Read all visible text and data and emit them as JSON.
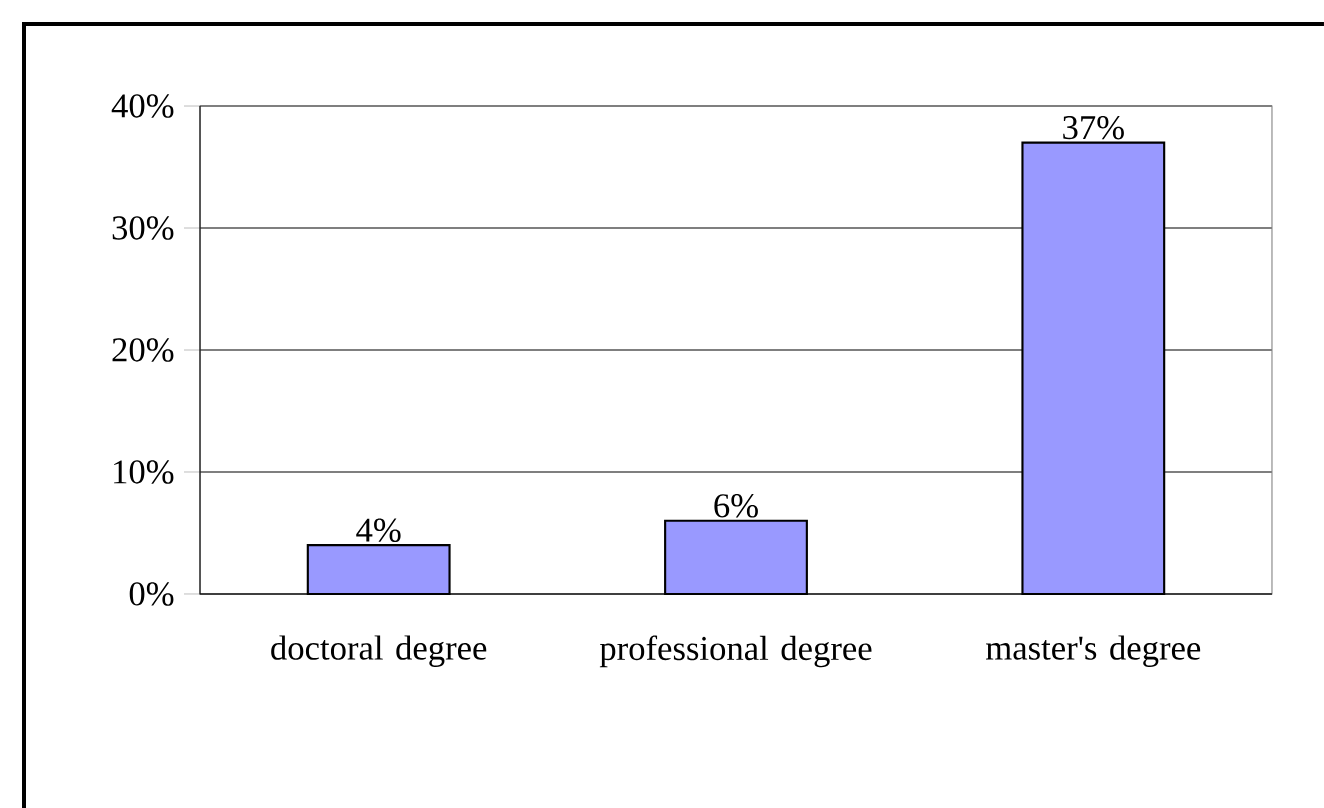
{
  "chart_data": {
    "type": "bar",
    "categories": [
      "doctoral degree",
      "professional degree",
      "master's degree"
    ],
    "values": [
      4,
      6,
      37
    ],
    "value_labels": [
      "4%",
      "6%",
      "37%"
    ],
    "color": "#9999ff",
    "ylim": [
      0,
      40
    ],
    "yticks": [
      {
        "value": 0,
        "label": "0%"
      },
      {
        "value": 10,
        "label": "10%"
      },
      {
        "value": 20,
        "label": "20%"
      },
      {
        "value": 30,
        "label": "30%"
      },
      {
        "value": 40,
        "label": "40%"
      }
    ],
    "grid": "y"
  }
}
